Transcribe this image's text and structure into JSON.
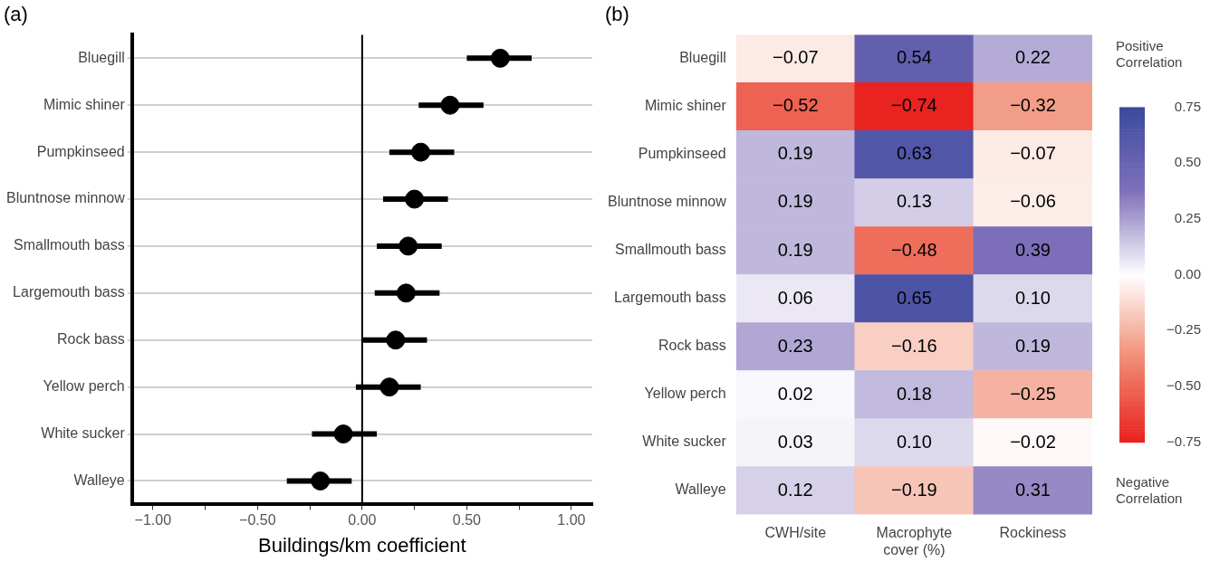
{
  "chart_data": [
    {
      "type": "scatter",
      "orientation": "horizontal",
      "title": "(a)",
      "xlabel": "Buildings/km coefficient",
      "categories": [
        "Bluegill",
        "Mimic shiner",
        "Pumpkinseed",
        "Bluntnose minnow",
        "Smallmouth bass",
        "Largemouth bass",
        "Rock bass",
        "Yellow perch",
        "White sucker",
        "Walleye"
      ],
      "values": [
        0.66,
        0.42,
        0.28,
        0.25,
        0.22,
        0.21,
        0.16,
        0.13,
        -0.09,
        -0.2
      ],
      "errors": [
        [
          0.5,
          0.81
        ],
        [
          0.27,
          0.58
        ],
        [
          0.13,
          0.44
        ],
        [
          0.1,
          0.41
        ],
        [
          0.07,
          0.38
        ],
        [
          0.06,
          0.37
        ],
        [
          0.0,
          0.31
        ],
        [
          -0.03,
          0.28
        ],
        [
          -0.24,
          0.07
        ],
        [
          -0.36,
          -0.05
        ]
      ],
      "color": "#000000",
      "marker": "circle",
      "grid": "y",
      "xlim": [
        -1.1,
        1.1
      ],
      "xticks": [
        {
          "value": -1,
          "label": "−1.00"
        },
        {
          "value": -0.75,
          "label": null
        },
        {
          "value": -0.5,
          "label": "−0.50"
        },
        {
          "value": -0.25,
          "label": null
        },
        {
          "value": 0,
          "label": "0.00"
        },
        {
          "value": 0.25,
          "label": null
        },
        {
          "value": 0.5,
          "label": "0.50"
        },
        {
          "value": 0.75,
          "label": null
        },
        {
          "value": 1,
          "label": "1.00"
        }
      ],
      "ref_lines": [
        {
          "axis": "x",
          "value": 0,
          "color": "#000000"
        }
      ]
    },
    {
      "type": "heatmap",
      "title": "(b)",
      "categories": [
        "CWH/site",
        "Macrophyte cover (%)",
        "Rockiness"
      ],
      "y_categories": [
        "Bluegill",
        "Mimic shiner",
        "Pumpkinseed",
        "Bluntnose minnow",
        "Smallmouth bass",
        "Largemouth bass",
        "Rock bass",
        "Yellow perch",
        "White sucker",
        "Walleye"
      ],
      "cells": [
        [
          -0.07,
          0.54,
          0.22
        ],
        [
          -0.52,
          -0.74,
          -0.32
        ],
        [
          0.19,
          0.63,
          -0.07
        ],
        [
          0.19,
          0.13,
          -0.06
        ],
        [
          0.19,
          -0.48,
          0.39
        ],
        [
          0.06,
          0.65,
          0.1
        ],
        [
          0.23,
          -0.16,
          0.19
        ],
        [
          0.02,
          0.18,
          -0.25
        ],
        [
          0.03,
          0.1,
          -0.02
        ],
        [
          0.12,
          -0.19,
          0.31
        ]
      ],
      "cell_labels": [
        [
          "−0.07",
          "0.54",
          "0.22"
        ],
        [
          "−0.52",
          "−0.74",
          "−0.32"
        ],
        [
          "0.19",
          "0.63",
          "−0.07"
        ],
        [
          "0.19",
          "0.13",
          "−0.06"
        ],
        [
          "0.19",
          "−0.48",
          "0.39"
        ],
        [
          "0.06",
          "0.65",
          "0.10"
        ],
        [
          "0.23",
          "−0.16",
          "0.19"
        ],
        [
          "0.02",
          "0.18",
          "−0.25"
        ],
        [
          "0.03",
          "0.10",
          "−0.02"
        ],
        [
          "0.12",
          "−0.19",
          "0.31"
        ]
      ],
      "clim": [
        -0.75,
        0.75
      ],
      "cticks": [
        {
          "value": 0.75,
          "label": "0.75"
        },
        {
          "value": 0.5,
          "label": "0.50"
        },
        {
          "value": 0.25,
          "label": "0.25"
        },
        {
          "value": 0,
          "label": "0.00"
        },
        {
          "value": -0.25,
          "label": "−0.25"
        },
        {
          "value": -0.5,
          "label": "−0.50"
        },
        {
          "value": -0.75,
          "label": "−0.75"
        }
      ],
      "annotations": [
        "Positive Correlation",
        "Negative Correlation"
      ]
    }
  ]
}
